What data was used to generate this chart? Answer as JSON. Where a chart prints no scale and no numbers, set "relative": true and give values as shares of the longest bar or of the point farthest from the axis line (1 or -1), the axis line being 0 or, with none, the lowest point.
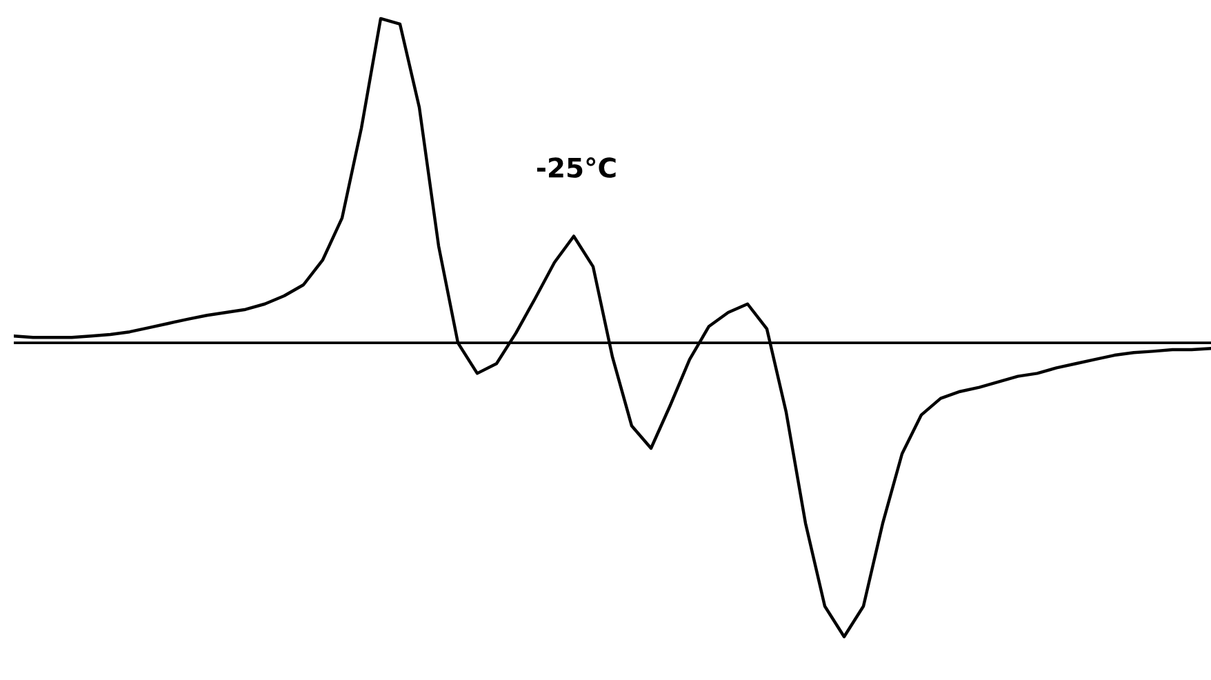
{
  "chart_data": {
    "type": "line",
    "relative": true,
    "color": "#000000",
    "annotations": [
      "-25°C"
    ],
    "categories": [
      null,
      null,
      null,
      null,
      null,
      null,
      null,
      null,
      null,
      null,
      null,
      null,
      null,
      null,
      null,
      null,
      null,
      null,
      null,
      null,
      null,
      null,
      null,
      null,
      null,
      null,
      null,
      null,
      null,
      null,
      null,
      null,
      null,
      null,
      null,
      null,
      null,
      null,
      null,
      null,
      null,
      null,
      null,
      null,
      null,
      null,
      null,
      null,
      null,
      null,
      null,
      null,
      null,
      null,
      null,
      null,
      null,
      null,
      null,
      null,
      null,
      null,
      null
    ],
    "values": [
      0.021,
      0.017,
      0.017,
      0.017,
      0.021,
      0.026,
      0.034,
      0.047,
      0.06,
      0.073,
      0.085,
      0.094,
      0.103,
      0.12,
      0.145,
      0.179,
      0.256,
      0.385,
      0.662,
      1,
      0.983,
      0.726,
      0.299,
      0,
      -0.094,
      -0.064,
      0.03,
      0.137,
      0.248,
      0.329,
      0.235,
      -0.043,
      -0.256,
      -0.325,
      -0.192,
      -0.051,
      0.051,
      0.094,
      0.12,
      0.043,
      -0.214,
      -0.556,
      -0.812,
      -0.906,
      -0.812,
      -0.556,
      -0.342,
      -0.222,
      -0.171,
      -0.15,
      -0.137,
      -0.12,
      -0.103,
      -0.094,
      -0.077,
      -0.064,
      -0.051,
      -0.038,
      -0.03,
      -0.026,
      -0.021,
      -0.021,
      -0.017
    ],
    "legend": false
  }
}
